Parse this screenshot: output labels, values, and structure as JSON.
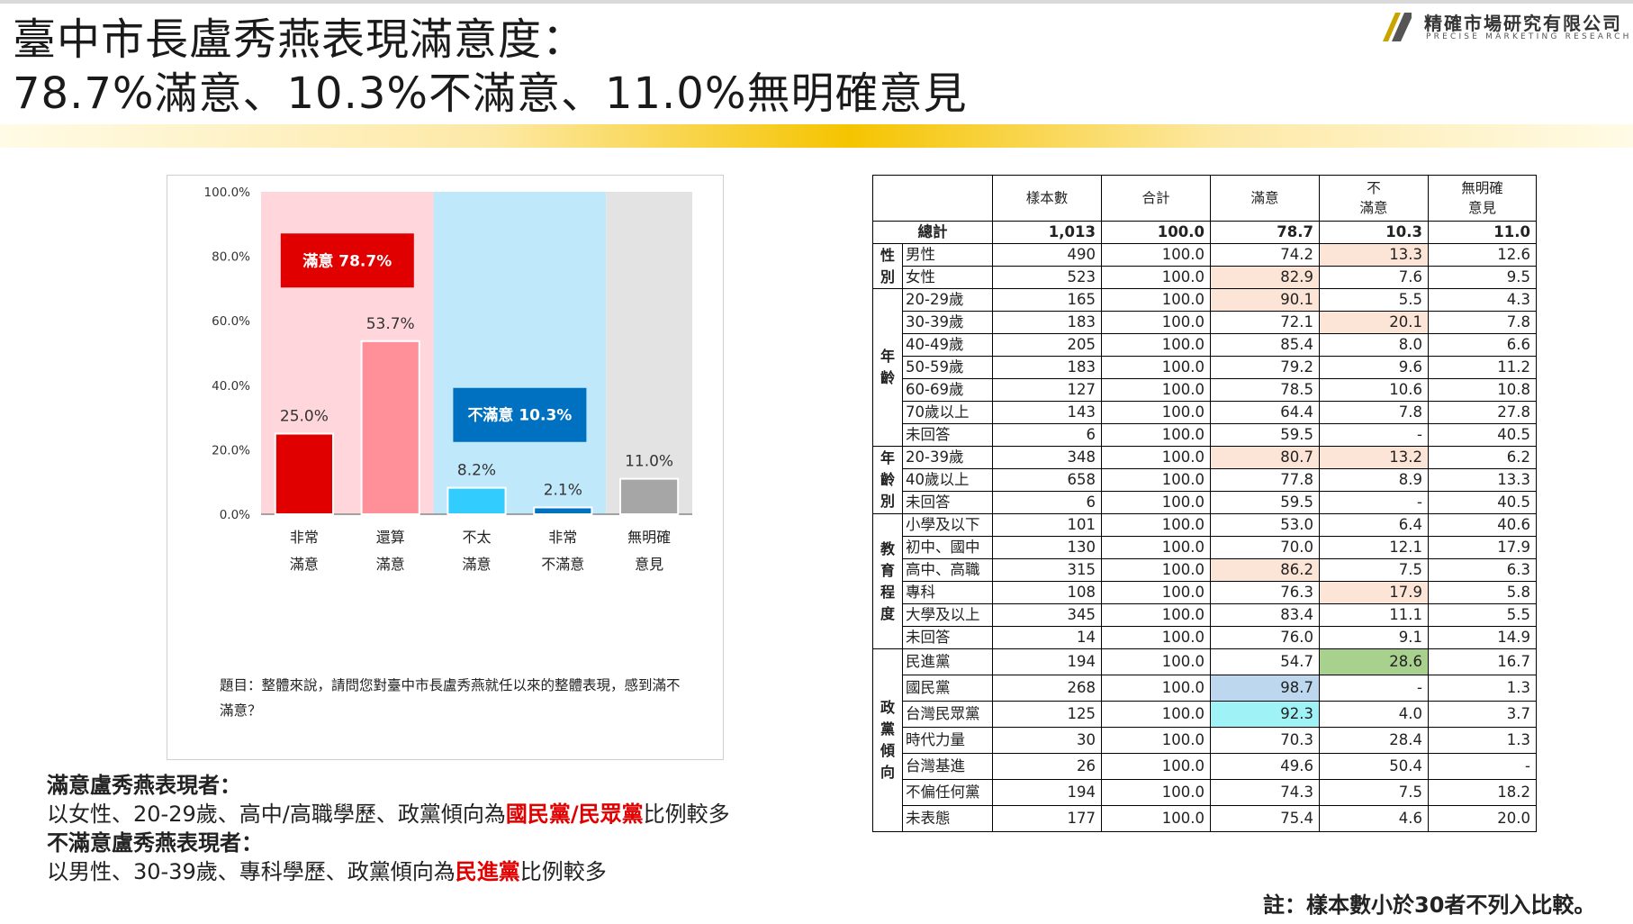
{
  "title": {
    "line1": "臺中市長盧秀燕表現滿意度：",
    "line2": "78.7%滿意、10.3%不滿意、11.0%無明確意見"
  },
  "logo": {
    "name": "精確市場研究有限公司",
    "english": "PRECISE MARKETING RESEARCH"
  },
  "chart_data": {
    "type": "bar",
    "categories": [
      [
        "非常",
        "滿意"
      ],
      [
        "還算",
        "滿意"
      ],
      [
        "不太",
        "滿意"
      ],
      [
        "非常",
        "不滿意"
      ],
      [
        "無明確",
        "意見"
      ]
    ],
    "values": [
      25.0,
      53.7,
      8.2,
      2.1,
      11.0
    ],
    "value_labels": [
      "25.0%",
      "53.7%",
      "8.2%",
      "2.1%",
      "11.0%"
    ],
    "bar_colors": [
      "#e00000",
      "#ff8f98",
      "#33ccff",
      "#0070c0",
      "#a6a6a6"
    ],
    "ylim": [
      0,
      100
    ],
    "yticks": [
      "0.0%",
      "20.0%",
      "40.0%",
      "60.0%",
      "80.0%",
      "100.0%"
    ],
    "bands": [
      {
        "from": 0,
        "to": 2,
        "color": "#ffd6db",
        "label": "滿意 78.7%",
        "label_color": "#e00000"
      },
      {
        "from": 2,
        "to": 4,
        "color": "#bfe9fb",
        "label": "不滿意 10.3%",
        "label_color": "#0070c0"
      },
      {
        "from": 4,
        "to": 5,
        "color": "#e3e3e3"
      }
    ],
    "question": "題目：整體來說，請問您對臺中市長盧秀燕就任以來的整體表現，感到滿不滿意？"
  },
  "notes": {
    "sat_heading": "滿意盧秀燕表現者：",
    "sat_pre": "以女性、20-29歲、高中/高職學歷、政黨傾向為",
    "sat_highlight": "國民黨/民眾黨",
    "sat_post": "比例較多",
    "dis_heading": "不滿意盧秀燕表現者：",
    "dis_pre": "以男性、30-39歲、專科學歷、政黨傾向為",
    "dis_highlight": "民進黨",
    "dis_post": "比例較多"
  },
  "table": {
    "headers": [
      "",
      "",
      "樣本數",
      "合計",
      "滿意",
      "不\n滿意",
      "無明確\n意見"
    ],
    "total": {
      "label": "總計",
      "values": [
        "1,013",
        "100.0",
        "78.7",
        "10.3",
        "11.0"
      ]
    },
    "groups": [
      {
        "name": "性\n別",
        "rows": [
          {
            "label": "男性",
            "values": [
              "490",
              "100.0",
              "74.2",
              "13.3",
              "12.6"
            ],
            "hl": {
              "3": "#fce4d6"
            }
          },
          {
            "label": "女性",
            "values": [
              "523",
              "100.0",
              "82.9",
              "7.6",
              "9.5"
            ],
            "hl": {
              "2": "#fce4d6"
            }
          }
        ]
      },
      {
        "name": "年\n齡",
        "rows": [
          {
            "label": "20-29歲",
            "values": [
              "165",
              "100.0",
              "90.1",
              "5.5",
              "4.3"
            ],
            "hl": {
              "2": "#fce4d6"
            }
          },
          {
            "label": "30-39歲",
            "values": [
              "183",
              "100.0",
              "72.1",
              "20.1",
              "7.8"
            ],
            "hl": {
              "3": "#fce4d6"
            }
          },
          {
            "label": "40-49歲",
            "values": [
              "205",
              "100.0",
              "85.4",
              "8.0",
              "6.6"
            ]
          },
          {
            "label": "50-59歲",
            "values": [
              "183",
              "100.0",
              "79.2",
              "9.6",
              "11.2"
            ]
          },
          {
            "label": "60-69歲",
            "values": [
              "127",
              "100.0",
              "78.5",
              "10.6",
              "10.8"
            ]
          },
          {
            "label": "70歲以上",
            "values": [
              "143",
              "100.0",
              "64.4",
              "7.8",
              "27.8"
            ]
          },
          {
            "label": "未回答",
            "values": [
              "6",
              "100.0",
              "59.5",
              "-",
              "40.5"
            ]
          }
        ]
      },
      {
        "name": "年\n齡\n別",
        "rows": [
          {
            "label": "20-39歲",
            "values": [
              "348",
              "100.0",
              "80.7",
              "13.2",
              "6.2"
            ],
            "hl": {
              "2": "#fce4d6",
              "3": "#fce4d6"
            }
          },
          {
            "label": "40歲以上",
            "values": [
              "658",
              "100.0",
              "77.8",
              "8.9",
              "13.3"
            ]
          },
          {
            "label": "未回答",
            "values": [
              "6",
              "100.0",
              "59.5",
              "-",
              "40.5"
            ]
          }
        ]
      },
      {
        "name": "教\n育\n程\n度",
        "rows": [
          {
            "label": "小學及以下",
            "values": [
              "101",
              "100.0",
              "53.0",
              "6.4",
              "40.6"
            ]
          },
          {
            "label": "初中、國中",
            "values": [
              "130",
              "100.0",
              "70.0",
              "12.1",
              "17.9"
            ]
          },
          {
            "label": "高中、高職",
            "values": [
              "315",
              "100.0",
              "86.2",
              "7.5",
              "6.3"
            ],
            "hl": {
              "2": "#fce4d6"
            }
          },
          {
            "label": "專科",
            "values": [
              "108",
              "100.0",
              "76.3",
              "17.9",
              "5.8"
            ],
            "hl": {
              "3": "#fce4d6"
            }
          },
          {
            "label": "大學及以上",
            "values": [
              "345",
              "100.0",
              "83.4",
              "11.1",
              "5.5"
            ]
          },
          {
            "label": "未回答",
            "values": [
              "14",
              "100.0",
              "76.0",
              "9.1",
              "14.9"
            ]
          }
        ]
      },
      {
        "name": "政\n黨\n傾\n向",
        "party": true,
        "rows": [
          {
            "label": "民進黨",
            "values": [
              "194",
              "100.0",
              "54.7",
              "28.6",
              "16.7"
            ],
            "hl": {
              "3": "#a9d18e"
            }
          },
          {
            "label": "國民黨",
            "values": [
              "268",
              "100.0",
              "98.7",
              "-",
              "1.3"
            ],
            "hl": {
              "2": "#bdd7ee"
            }
          },
          {
            "label": "台灣民眾黨",
            "values": [
              "125",
              "100.0",
              "92.3",
              "4.0",
              "3.7"
            ],
            "hl": {
              "2": "#9ff3f7"
            }
          },
          {
            "label": "時代力量",
            "values": [
              "30",
              "100.0",
              "70.3",
              "28.4",
              "1.3"
            ]
          },
          {
            "label": "台灣基進",
            "values": [
              "26",
              "100.0",
              "49.6",
              "50.4",
              "-"
            ]
          },
          {
            "label": "不偏任何黨",
            "values": [
              "194",
              "100.0",
              "74.3",
              "7.5",
              "18.2"
            ]
          },
          {
            "label": "未表態",
            "values": [
              "177",
              "100.0",
              "75.4",
              "4.6",
              "20.0"
            ]
          }
        ]
      }
    ]
  },
  "footnote": "註：樣本數小於30者不列入比較。"
}
